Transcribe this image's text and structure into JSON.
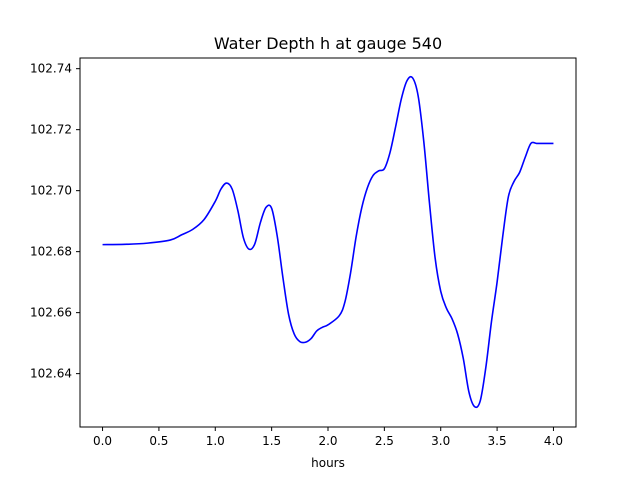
{
  "chart_data": {
    "type": "line",
    "title": "Water Depth h at gauge 540",
    "xlabel": "hours",
    "ylabel": "",
    "xlim": [
      -0.2,
      4.2
    ],
    "ylim": [
      102.6225,
      102.7435
    ],
    "xticks": [
      0.0,
      0.5,
      1.0,
      1.5,
      2.0,
      2.5,
      3.0,
      3.5,
      4.0
    ],
    "xtick_labels": [
      "0.0",
      "0.5",
      "1.0",
      "1.5",
      "2.0",
      "2.5",
      "3.0",
      "3.5",
      "4.0"
    ],
    "yticks": [
      102.64,
      102.66,
      102.68,
      102.7,
      102.72,
      102.74
    ],
    "ytick_labels": [
      "102.64",
      "102.66",
      "102.68",
      "102.70",
      "102.72",
      "102.74"
    ],
    "grid": false,
    "series": [
      {
        "color": "#0000ff",
        "x": [
          0.0,
          0.2,
          0.4,
          0.6,
          0.7,
          0.8,
          0.9,
          1.0,
          1.05,
          1.1,
          1.15,
          1.2,
          1.25,
          1.3,
          1.35,
          1.4,
          1.45,
          1.5,
          1.55,
          1.6,
          1.65,
          1.7,
          1.75,
          1.8,
          1.85,
          1.9,
          1.95,
          2.0,
          2.1,
          2.15,
          2.2,
          2.25,
          2.3,
          2.35,
          2.4,
          2.45,
          2.5,
          2.55,
          2.6,
          2.65,
          2.7,
          2.75,
          2.8,
          2.85,
          2.9,
          2.95,
          3.0,
          3.05,
          3.1,
          3.15,
          3.2,
          3.25,
          3.3,
          3.35,
          3.4,
          3.45,
          3.5,
          3.55,
          3.6,
          3.65,
          3.7,
          3.75,
          3.8,
          3.85,
          3.9,
          3.95,
          4.0
        ],
        "y": [
          102.6823,
          102.6824,
          102.6828,
          102.6838,
          102.6855,
          102.6873,
          102.6905,
          102.6965,
          102.7005,
          102.7025,
          102.7005,
          102.6935,
          102.6845,
          102.6808,
          102.6825,
          102.6895,
          102.6945,
          102.6942,
          102.685,
          102.6715,
          102.6595,
          102.653,
          102.6505,
          102.6503,
          102.6515,
          102.654,
          102.6552,
          102.656,
          102.659,
          102.6635,
          102.673,
          102.685,
          102.6945,
          102.701,
          102.705,
          102.7065,
          102.7072,
          102.7125,
          102.721,
          102.73,
          102.736,
          102.737,
          102.731,
          102.716,
          102.696,
          102.678,
          102.667,
          102.6615,
          102.658,
          102.653,
          102.645,
          102.634,
          102.6292,
          102.631,
          102.642,
          102.657,
          102.67,
          102.685,
          102.698,
          102.703,
          102.706,
          102.711,
          102.7155,
          102.7155,
          102.7155,
          102.7155,
          102.7155
        ]
      }
    ]
  }
}
